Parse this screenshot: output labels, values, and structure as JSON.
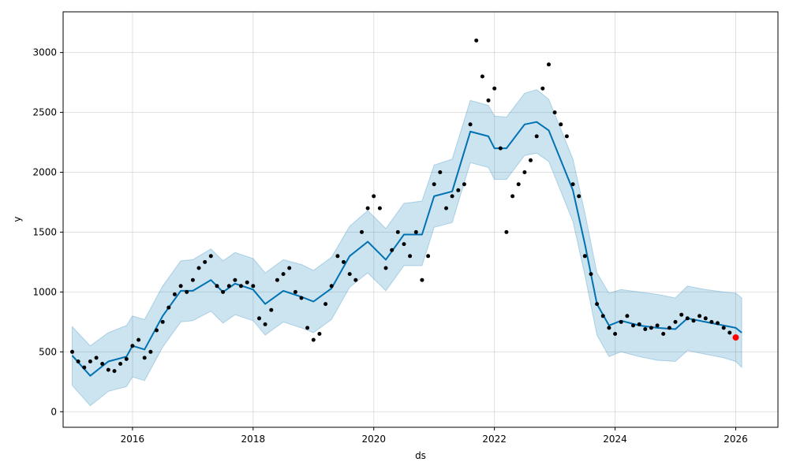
{
  "chart_data": {
    "type": "line",
    "xlabel": "ds",
    "ylabel": "y",
    "xlim": [
      2014.85,
      2026.7
    ],
    "ylim": [
      -130,
      3340
    ],
    "grid": true,
    "x_ticks": [
      2016,
      2018,
      2020,
      2022,
      2024,
      2026
    ],
    "x_tick_labels": [
      "2016",
      "2018",
      "2020",
      "2022",
      "2024",
      "2026"
    ],
    "y_ticks": [
      0,
      500,
      1000,
      1500,
      2000,
      2500,
      3000
    ],
    "y_tick_labels": [
      "0",
      "500",
      "1000",
      "1500",
      "2000",
      "2500",
      "3000"
    ],
    "colors": {
      "forecast_line": "#0072B2",
      "uncertainty_band": "#0072B2",
      "observed_points": "#000000",
      "highlight_point": "#ff0000"
    },
    "series": [
      {
        "kind": "forecast",
        "x": [
          2015.0,
          2015.3,
          2015.6,
          2015.9,
          2016.0,
          2016.2,
          2016.5,
          2016.8,
          2017.0,
          2017.3,
          2017.5,
          2017.7,
          2018.0,
          2018.2,
          2018.5,
          2018.8,
          2019.0,
          2019.3,
          2019.6,
          2019.9,
          2020.2,
          2020.5,
          2020.8,
          2021.0,
          2021.3,
          2021.6,
          2021.9,
          2022.0,
          2022.2,
          2022.5,
          2022.7,
          2022.9,
          2023.1,
          2023.3,
          2023.5,
          2023.7,
          2023.9,
          2024.1,
          2024.4,
          2024.7,
          2025.0,
          2025.2,
          2025.5,
          2025.8,
          2026.0,
          2026.1
        ],
        "y": [
          470,
          300,
          420,
          460,
          550,
          520,
          800,
          1010,
          1010,
          1100,
          1000,
          1070,
          1020,
          900,
          1010,
          960,
          920,
          1030,
          1300,
          1420,
          1270,
          1480,
          1480,
          1800,
          1840,
          2340,
          2300,
          2200,
          2200,
          2400,
          2420,
          2350,
          2100,
          1850,
          1400,
          900,
          720,
          760,
          720,
          700,
          690,
          780,
          750,
          720,
          700,
          660
        ]
      },
      {
        "kind": "uncertainty_band",
        "x": [
          2015.0,
          2015.3,
          2015.6,
          2015.9,
          2016.0,
          2016.2,
          2016.5,
          2016.8,
          2017.0,
          2017.3,
          2017.5,
          2017.7,
          2018.0,
          2018.2,
          2018.5,
          2018.8,
          2019.0,
          2019.3,
          2019.6,
          2019.9,
          2020.2,
          2020.5,
          2020.8,
          2021.0,
          2021.3,
          2021.6,
          2021.9,
          2022.0,
          2022.2,
          2022.5,
          2022.7,
          2022.9,
          2023.1,
          2023.3,
          2023.5,
          2023.7,
          2023.9,
          2024.1,
          2024.4,
          2024.7,
          2025.0,
          2025.2,
          2025.5,
          2025.8,
          2026.0,
          2026.1
        ],
        "upper": [
          710,
          550,
          660,
          720,
          800,
          770,
          1050,
          1260,
          1270,
          1360,
          1260,
          1330,
          1280,
          1160,
          1270,
          1230,
          1180,
          1290,
          1550,
          1680,
          1530,
          1740,
          1760,
          2060,
          2110,
          2600,
          2560,
          2470,
          2460,
          2660,
          2690,
          2610,
          2360,
          2110,
          1660,
          1160,
          990,
          1020,
          1000,
          980,
          950,
          1050,
          1020,
          1000,
          990,
          950
        ],
        "lower": [
          220,
          50,
          170,
          210,
          290,
          260,
          540,
          750,
          760,
          840,
          740,
          810,
          760,
          640,
          750,
          700,
          660,
          770,
          1040,
          1160,
          1010,
          1220,
          1220,
          1540,
          1580,
          2080,
          2040,
          1940,
          1940,
          2140,
          2160,
          2090,
          1840,
          1590,
          1140,
          640,
          460,
          500,
          460,
          430,
          420,
          510,
          480,
          450,
          420,
          370
        ]
      },
      {
        "kind": "observed",
        "x": [
          2015.0,
          2015.1,
          2015.2,
          2015.3,
          2015.4,
          2015.5,
          2015.6,
          2015.7,
          2015.8,
          2015.9,
          2016.0,
          2016.1,
          2016.2,
          2016.3,
          2016.4,
          2016.5,
          2016.6,
          2016.7,
          2016.8,
          2016.9,
          2017.0,
          2017.1,
          2017.2,
          2017.3,
          2017.4,
          2017.5,
          2017.6,
          2017.7,
          2017.8,
          2017.9,
          2018.0,
          2018.1,
          2018.2,
          2018.3,
          2018.4,
          2018.5,
          2018.6,
          2018.7,
          2018.8,
          2018.9,
          2019.0,
          2019.1,
          2019.2,
          2019.3,
          2019.4,
          2019.5,
          2019.6,
          2019.7,
          2019.8,
          2019.9,
          2020.0,
          2020.1,
          2020.2,
          2020.3,
          2020.4,
          2020.5,
          2020.6,
          2020.7,
          2020.8,
          2020.9,
          2021.0,
          2021.1,
          2021.2,
          2021.3,
          2021.4,
          2021.5,
          2021.6,
          2021.7,
          2021.8,
          2021.9,
          2022.0,
          2022.1,
          2022.2,
          2022.3,
          2022.4,
          2022.5,
          2022.6,
          2022.7,
          2022.8,
          2022.9,
          2023.0,
          2023.1,
          2023.2,
          2023.3,
          2023.4,
          2023.5,
          2023.6,
          2023.7,
          2023.8,
          2023.9,
          2024.0,
          2024.1,
          2024.2,
          2024.3,
          2024.4,
          2024.5,
          2024.6,
          2024.7,
          2024.8,
          2024.9,
          2025.0,
          2025.1,
          2025.2,
          2025.3,
          2025.4,
          2025.5,
          2025.6,
          2025.7,
          2025.8,
          2025.9
        ],
        "y": [
          500,
          420,
          370,
          420,
          450,
          400,
          350,
          340,
          400,
          440,
          550,
          600,
          450,
          500,
          680,
          750,
          870,
          980,
          1050,
          1000,
          1100,
          1200,
          1250,
          1300,
          1050,
          1000,
          1050,
          1100,
          1050,
          1080,
          1050,
          780,
          730,
          850,
          1100,
          1150,
          1200,
          1000,
          950,
          700,
          600,
          650,
          900,
          1050,
          1300,
          1250,
          1150,
          1100,
          1500,
          1700,
          1800,
          1700,
          1200,
          1350,
          1500,
          1400,
          1300,
          1500,
          1100,
          1300,
          1900,
          2000,
          1700,
          1800,
          1850,
          1900,
          2400,
          3100,
          2800,
          2600,
          2700,
          2200,
          1500,
          1800,
          1900,
          2000,
          2100,
          2300,
          2700,
          2900,
          2500,
          2400,
          2300,
          1900,
          1800,
          1300,
          1150,
          900,
          800,
          700,
          650,
          750,
          800,
          720,
          730,
          690,
          700,
          720,
          650,
          700,
          750,
          810,
          780,
          760,
          800,
          780,
          750,
          740,
          700,
          660
        ]
      },
      {
        "kind": "highlight",
        "x": [
          2026.0
        ],
        "y": [
          620
        ]
      }
    ]
  }
}
